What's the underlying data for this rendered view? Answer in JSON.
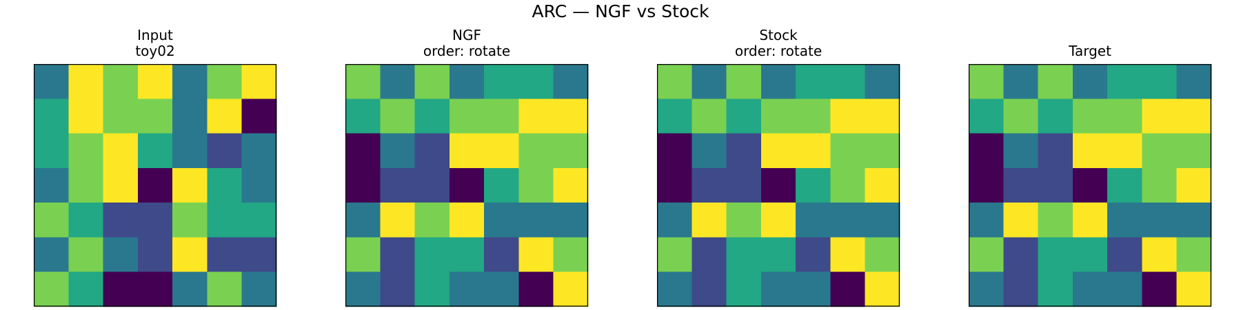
{
  "figure": {
    "title": "ARC — NGF vs Stock"
  },
  "palette": {
    "0": "#440154",
    "2": "#3e4a89",
    "3": "#2a788e",
    "4": "#22a884",
    "5": "#7ad151",
    "6": "#fde725"
  },
  "chart_data": [
    {
      "type": "heatmap",
      "title_lines": [
        "Input",
        "toy02"
      ],
      "grid": [
        [
          3,
          6,
          5,
          6,
          3,
          5,
          6
        ],
        [
          4,
          6,
          5,
          5,
          3,
          6,
          0
        ],
        [
          4,
          5,
          6,
          4,
          3,
          2,
          3
        ],
        [
          3,
          5,
          6,
          0,
          6,
          4,
          3
        ],
        [
          5,
          4,
          2,
          2,
          5,
          4,
          4
        ],
        [
          3,
          5,
          3,
          2,
          6,
          2,
          2
        ],
        [
          5,
          4,
          0,
          0,
          3,
          5,
          3
        ]
      ]
    },
    {
      "type": "heatmap",
      "title_lines": [
        "NGF",
        "order: rotate"
      ],
      "grid": [
        [
          5,
          3,
          5,
          3,
          4,
          4,
          3
        ],
        [
          4,
          5,
          4,
          5,
          5,
          6,
          6
        ],
        [
          0,
          3,
          2,
          6,
          6,
          5,
          5
        ],
        [
          0,
          2,
          2,
          0,
          4,
          5,
          6
        ],
        [
          3,
          6,
          5,
          6,
          3,
          3,
          3
        ],
        [
          5,
          2,
          4,
          4,
          2,
          6,
          5
        ],
        [
          3,
          2,
          4,
          3,
          3,
          0,
          6
        ]
      ]
    },
    {
      "type": "heatmap",
      "title_lines": [
        "Stock",
        "order: rotate"
      ],
      "grid": [
        [
          5,
          3,
          5,
          3,
          4,
          4,
          3
        ],
        [
          4,
          5,
          4,
          5,
          5,
          6,
          6
        ],
        [
          0,
          3,
          2,
          6,
          6,
          5,
          5
        ],
        [
          0,
          2,
          2,
          0,
          4,
          5,
          6
        ],
        [
          3,
          6,
          5,
          6,
          3,
          3,
          3
        ],
        [
          5,
          2,
          4,
          4,
          2,
          6,
          5
        ],
        [
          3,
          2,
          4,
          3,
          3,
          0,
          6
        ]
      ]
    },
    {
      "type": "heatmap",
      "title_lines": [
        "",
        "Target"
      ],
      "grid": [
        [
          5,
          3,
          5,
          3,
          4,
          4,
          3
        ],
        [
          4,
          5,
          4,
          5,
          5,
          6,
          6
        ],
        [
          0,
          3,
          2,
          6,
          6,
          5,
          5
        ],
        [
          0,
          2,
          2,
          0,
          4,
          5,
          6
        ],
        [
          3,
          6,
          5,
          6,
          3,
          3,
          3
        ],
        [
          5,
          2,
          4,
          4,
          2,
          6,
          5
        ],
        [
          3,
          2,
          4,
          3,
          3,
          0,
          6
        ]
      ]
    }
  ]
}
